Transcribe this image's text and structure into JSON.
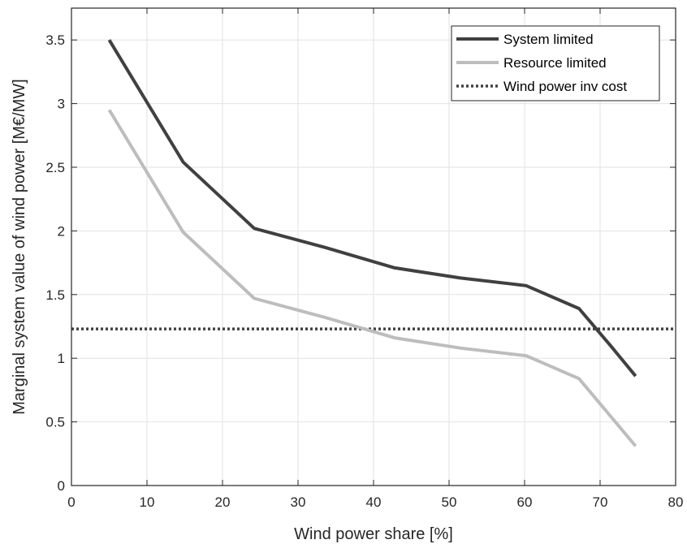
{
  "chart_data": {
    "type": "line",
    "title": "",
    "xlabel": "Wind power share [%]",
    "ylabel": "Marginal system value of wind power [M€/MW]",
    "xlim": [
      0,
      80
    ],
    "ylim": [
      0,
      3.75
    ],
    "xticks": [
      0,
      10,
      20,
      30,
      40,
      50,
      60,
      70,
      80
    ],
    "yticks": [
      0,
      0.5,
      1,
      1.5,
      2,
      2.5,
      3,
      3.5
    ],
    "xtick_labels": [
      "0",
      "10",
      "20",
      "30",
      "40",
      "50",
      "60",
      "70",
      "80"
    ],
    "ytick_labels": [
      "0",
      "0.5",
      "1",
      "1.5",
      "2",
      "2.5",
      "3",
      "3.5"
    ],
    "grid": true,
    "legend_position": "top-right",
    "series": [
      {
        "name": "System limited",
        "color": "#404040",
        "style": "solid",
        "x": [
          5,
          14.8,
          24.2,
          33.6,
          42.8,
          51.5,
          60.2,
          67.2,
          71.5,
          74.7
        ],
        "y": [
          3.5,
          2.54,
          2.02,
          1.87,
          1.71,
          1.63,
          1.57,
          1.39,
          1.09,
          0.86
        ]
      },
      {
        "name": "Resource limited",
        "color": "#bdbdbd",
        "style": "solid",
        "x": [
          5,
          14.8,
          24.2,
          33.6,
          42.8,
          51.5,
          60.2,
          67.2,
          74.7
        ],
        "y": [
          2.95,
          1.99,
          1.47,
          1.32,
          1.16,
          1.08,
          1.02,
          0.84,
          0.31
        ]
      },
      {
        "name": "Wind power inv cost",
        "color": "#404040",
        "style": "dotted",
        "x": [
          0,
          80
        ],
        "y": [
          1.23,
          1.23
        ]
      }
    ]
  }
}
